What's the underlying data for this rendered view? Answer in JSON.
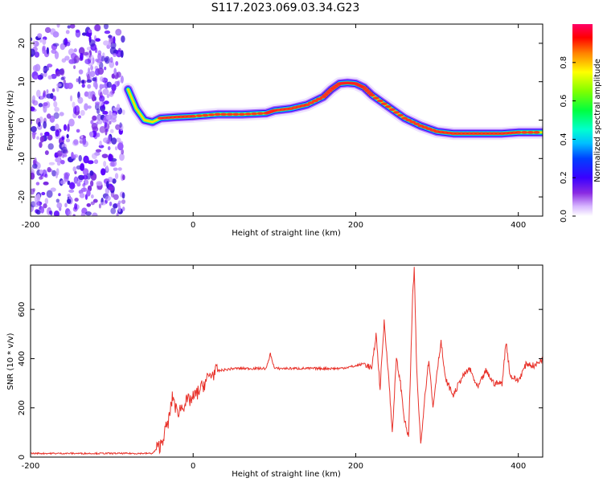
{
  "title": "S117.2023.069.03.34.G23",
  "chart_data": [
    {
      "type": "heatmap",
      "xlabel": "Height of straight line (km)",
      "ylabel": "Frequency (Hz)",
      "xlim": [
        -200,
        430
      ],
      "ylim": [
        -25,
        25
      ],
      "xticks": [
        -200,
        0,
        200,
        400
      ],
      "yticks": [
        20,
        10,
        0,
        -10,
        -20
      ],
      "ridge_x": [
        -80,
        -70,
        -60,
        -50,
        -40,
        -20,
        0,
        30,
        60,
        90,
        100,
        120,
        140,
        160,
        170,
        180,
        190,
        200,
        210,
        220,
        240,
        260,
        280,
        300,
        320,
        340,
        360,
        380,
        400,
        430
      ],
      "ridge_y": [
        8,
        3,
        0,
        -0.5,
        0.5,
        0.8,
        1,
        1.5,
        1.5,
        1.8,
        2.5,
        3,
        4,
        6,
        8,
        9.5,
        9.7,
        9.5,
        8.5,
        6.5,
        3.5,
        0.5,
        -1.5,
        -3,
        -3.5,
        -3.5,
        -3.5,
        -3.5,
        -3.2,
        -3.2
      ],
      "noise_xrange": [
        -200,
        -85
      ],
      "colorbar": {
        "label": "Normalized spectral amplitude",
        "range": [
          0,
          1
        ],
        "ticks": [
          0.0,
          0.2,
          0.4,
          0.6,
          0.8
        ],
        "tick_labels": [
          "0.0",
          "0.2",
          "0.4",
          "0.6",
          "0.8"
        ]
      },
      "grid": false
    },
    {
      "type": "line",
      "xlabel": "Height of straight line (km)",
      "ylabel": "SNR (10 * v/v)",
      "xlim": [
        -200,
        430
      ],
      "ylim": [
        0,
        780
      ],
      "xticks": [
        -200,
        0,
        200,
        400
      ],
      "yticks": [
        0,
        200,
        400,
        600
      ],
      "color": "#e8322a",
      "series": [
        {
          "x": [
            -200,
            -100,
            -50,
            -40,
            -30,
            -25,
            -20,
            -10,
            0,
            10,
            20,
            30,
            50,
            90,
            95,
            100,
            150,
            180,
            200,
            210,
            220,
            225,
            230,
            235,
            240,
            245,
            250,
            255,
            260,
            265,
            270,
            272,
            275,
            280,
            285,
            290,
            295,
            300,
            305,
            310,
            320,
            330,
            340,
            350,
            360,
            370,
            380,
            385,
            390,
            400,
            410,
            420,
            430
          ],
          "y": [
            15,
            15,
            15,
            50,
            150,
            250,
            180,
            220,
            240,
            280,
            330,
            350,
            360,
            360,
            420,
            360,
            360,
            360,
            370,
            380,
            360,
            500,
            280,
            550,
            350,
            100,
            400,
            300,
            150,
            80,
            650,
            760,
            350,
            50,
            250,
            400,
            200,
            350,
            470,
            320,
            250,
            320,
            360,
            280,
            350,
            300,
            300,
            470,
            330,
            310,
            380,
            370,
            400
          ]
        }
      ],
      "grid": false
    }
  ]
}
